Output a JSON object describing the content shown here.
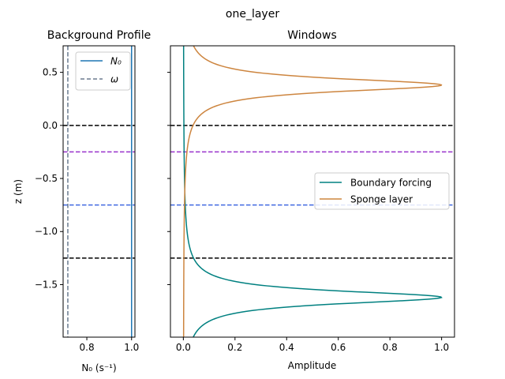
{
  "figure": {
    "suptitle": "one_layer"
  },
  "chart_data": [
    {
      "type": "line",
      "title": "Background Profile",
      "xlabel": "N₀ (s⁻¹)",
      "ylabel": "z (m)",
      "xlim": [
        0.694,
        1.015
      ],
      "ylim": [
        -1.995,
        0.75
      ],
      "xticks": [
        0.8,
        1.0
      ],
      "xtick_labels": [
        "0.8",
        "1.0"
      ],
      "yticks": [
        0.5,
        0.0,
        -0.5,
        -1.0,
        -1.5
      ],
      "ytick_labels": [
        "0.5",
        "0.0",
        "−0.5",
        "−1.0",
        "−1.5"
      ],
      "grid": false,
      "legend_position": "top-right",
      "series": [
        {
          "name": "N₀",
          "style": "solid",
          "color": "#1f77b4",
          "x_constant": 1.0
        },
        {
          "name": "ω",
          "style": "dashed",
          "color": "#6b7b8f",
          "x_constant": 0.715
        }
      ],
      "hlines": [
        {
          "y": 0.0,
          "color": "#000000"
        },
        {
          "y": -0.25,
          "color": "#9932cc"
        },
        {
          "y": -0.75,
          "color": "#4169e1"
        },
        {
          "y": -1.25,
          "color": "#000000"
        }
      ]
    },
    {
      "type": "line",
      "title": "Windows",
      "xlabel": "Amplitude",
      "ylabel": "",
      "xlim": [
        -0.05,
        1.05
      ],
      "ylim": [
        -1.995,
        0.75
      ],
      "xticks": [
        0.0,
        0.2,
        0.4,
        0.6,
        0.8,
        1.0
      ],
      "xtick_labels": [
        "0.0",
        "0.2",
        "0.4",
        "0.6",
        "0.8",
        "1.0"
      ],
      "yticks": [
        0.5,
        0.0,
        -0.5,
        -1.0,
        -1.5
      ],
      "grid": false,
      "legend_position": "center-right",
      "series": [
        {
          "name": "Boundary forcing",
          "color": "#008080",
          "peak_z": -1.62,
          "peak_value": 1.0,
          "width": 0.075
        },
        {
          "name": "Sponge layer",
          "color": "#cd853f",
          "peak_z": 0.38,
          "peak_value": 1.0,
          "width": 0.075
        }
      ],
      "hlines": [
        {
          "y": 0.0,
          "color": "#000000"
        },
        {
          "y": -0.25,
          "color": "#9932cc"
        },
        {
          "y": -0.75,
          "color": "#4169e1"
        },
        {
          "y": -1.25,
          "color": "#000000"
        }
      ]
    }
  ]
}
